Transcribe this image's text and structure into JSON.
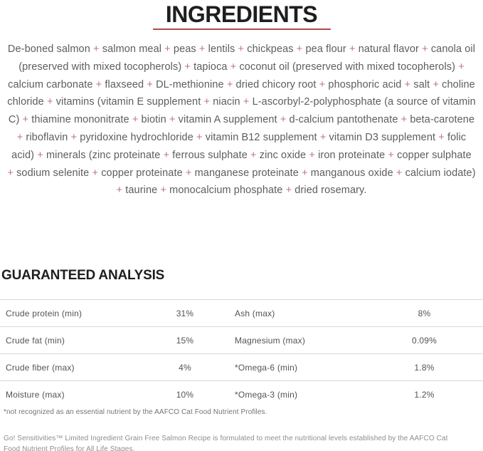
{
  "colors": {
    "heading": "#1e1e20",
    "divider_red": "#b04a4e",
    "body_gray": "#5c5d5f",
    "plus_pink": "#c4717f",
    "table_gray": "#525356",
    "row_border": "#d8d8d8"
  },
  "ingredients_section": {
    "title": "INGREDIENTS",
    "text": "De-boned salmon + salmon meal + peas + lentils + chickpeas + pea flour + natural flavor + canola oil (preserved with mixed tocopherols) + tapioca + coconut oil (preserved with mixed tocopherols) + calcium carbonate + flaxseed + DL-methionine + dried chicory root + phosphoric acid + salt + choline chloride + vitamins (vitamin E supplement + niacin + L-ascorbyl-2-polyphosphate (a source of vitamin C) + thiamine mononitrate + biotin + vitamin A supplement + d-calcium pantothenate + beta-carotene + riboflavin + pyridoxine hydrochloride + vitamin B12 supplement + vitamin D3 supplement + folic acid) + minerals (zinc proteinate + ferrous sulphate + zinc oxide + iron proteinate + copper sulphate + sodium selenite + copper proteinate + manganese proteinate + manganous oxide + calcium iodate) + taurine + monocalcium phosphate + dried rosemary."
  },
  "analysis_section": {
    "title": "GUARANTEED ANALYSIS",
    "rows": [
      {
        "left_label": "Crude protein (min)",
        "left_value": "31%",
        "right_label": "Ash (max)",
        "right_value": "8%"
      },
      {
        "left_label": "Crude fat (min)",
        "left_value": "15%",
        "right_label": "Magnesium (max)",
        "right_value": "0.09%"
      },
      {
        "left_label": "Crude fiber (max)",
        "left_value": "4%",
        "right_label": "*Omega-6 (min)",
        "right_value": "1.8%"
      },
      {
        "left_label": "Moisture (max)",
        "left_value": "10%",
        "right_label": "*Omega-3 (min)",
        "right_value": "1.2%"
      }
    ],
    "footnote": "*not recognized as an essential nutrient by the AAFCO Cat Food Nutrient Profiles."
  },
  "disclaimer": "Go! Sensitivities™ Limited Ingredient Grain Free Salmon Recipe is formulated to meet the nutritional levels established by the AAFCO Cat Food Nutrient Profiles for All Life Stages."
}
